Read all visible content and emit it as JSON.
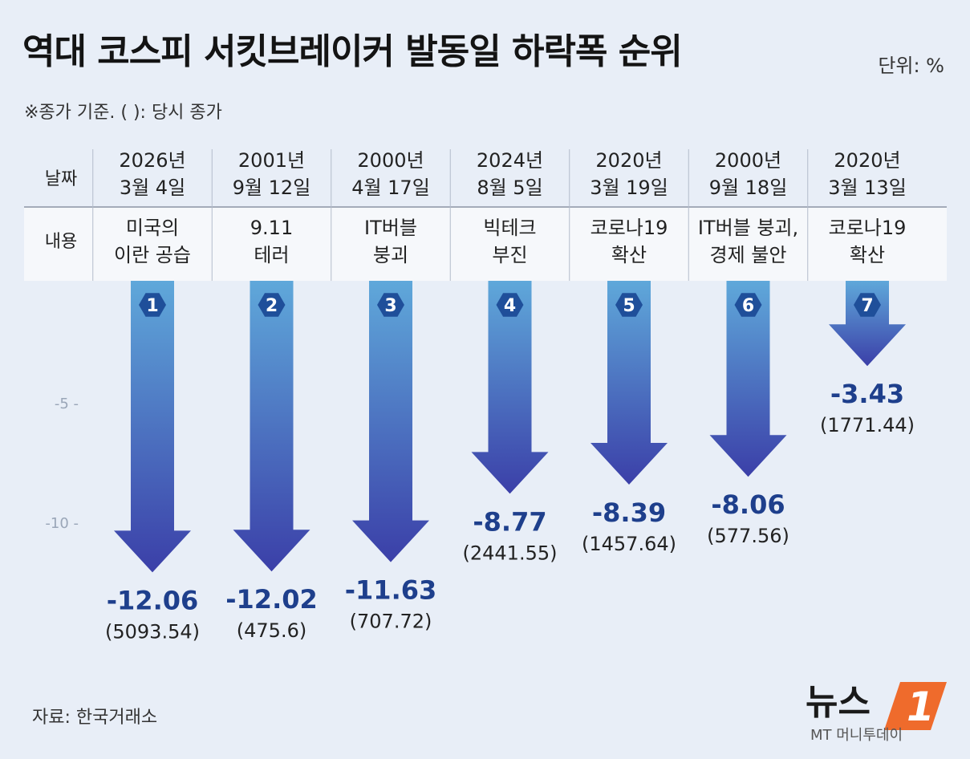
{
  "title": "역대 코스피 서킷브레이커 발동일 하락폭 순위",
  "unit": "단위: %",
  "note": "※종가 기준. ( ): 당시 종가",
  "source": "자료: 한국거래소",
  "logo": {
    "word": "뉴스",
    "number": "1",
    "sub": "MT 머니투데이"
  },
  "row_labels": {
    "date": "날짜",
    "content": "내용"
  },
  "colors": {
    "arrow_top": "#5fa8da",
    "arrow_bottom": "#3b3fa8",
    "badge": "#1f4f9a",
    "value": "#1e3f8c"
  },
  "chart_data": {
    "type": "bar",
    "title": "역대 코스피 서킷브레이커 발동일 하락폭 순위",
    "ylabel": "단위: %",
    "ylim": [
      -13,
      0
    ],
    "yticks": [
      {
        "value": -5,
        "label": "-5 -"
      },
      {
        "value": -10,
        "label": "-10 -"
      }
    ],
    "items": [
      {
        "rank": "1",
        "date1": "2026년",
        "date2": "3월 4일",
        "content1": "미국의",
        "content2": "이란 공습",
        "value": -12.06,
        "value_label": "-12.06",
        "close_label": "(5093.54)"
      },
      {
        "rank": "2",
        "date1": "2001년",
        "date2": "9월 12일",
        "content1": "9.11",
        "content2": "테러",
        "value": -12.02,
        "value_label": "-12.02",
        "close_label": "(475.6)"
      },
      {
        "rank": "3",
        "date1": "2000년",
        "date2": "4월 17일",
        "content1": "IT버블",
        "content2": "붕괴",
        "value": -11.63,
        "value_label": "-11.63",
        "close_label": "(707.72)"
      },
      {
        "rank": "4",
        "date1": "2024년",
        "date2": "8월 5일",
        "content1": "빅테크",
        "content2": "부진",
        "value": -8.77,
        "value_label": "-8.77",
        "close_label": "(2441.55)"
      },
      {
        "rank": "5",
        "date1": "2020년",
        "date2": "3월 19일",
        "content1": "코로나19",
        "content2": "확산",
        "value": -8.39,
        "value_label": "-8.39",
        "close_label": "(1457.64)"
      },
      {
        "rank": "6",
        "date1": "2000년",
        "date2": "9월 18일",
        "content1": "IT버블 붕괴,",
        "content2": "경제 불안",
        "value": -8.06,
        "value_label": "-8.06",
        "close_label": "(577.56)"
      },
      {
        "rank": "7",
        "date1": "2020년",
        "date2": "3월 13일",
        "content1": "코로나19",
        "content2": "확산",
        "value": -3.43,
        "value_label": "-3.43",
        "close_label": "(1771.44)"
      }
    ]
  }
}
